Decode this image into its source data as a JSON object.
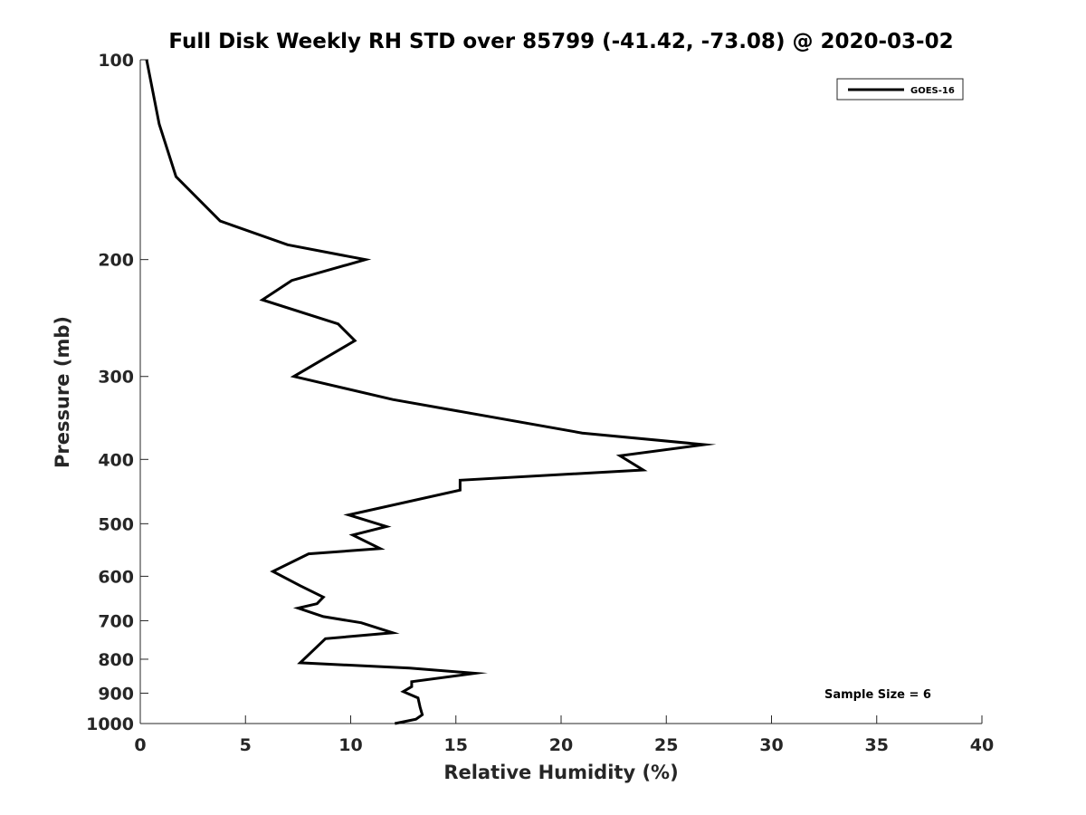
{
  "chart_data": {
    "type": "line",
    "title": "Full Disk Weekly RH STD over 85799 (-41.42, -73.08) @ 2020-03-02",
    "xlabel": "Relative Humidity (%)",
    "ylabel": "Pressure (mb)",
    "xlim": [
      0,
      40
    ],
    "ylim": [
      100,
      1000
    ],
    "yscale": "log",
    "y_reversed": true,
    "xticks": [
      0,
      5,
      10,
      15,
      20,
      25,
      30,
      35,
      40
    ],
    "xtick_labels": [
      "0",
      "5",
      "10",
      "15",
      "20",
      "25",
      "30",
      "35",
      "40"
    ],
    "yticks": [
      100,
      200,
      300,
      400,
      500,
      600,
      700,
      800,
      900,
      1000
    ],
    "ytick_labels": [
      "100",
      "200",
      "300",
      "400",
      "500",
      "600",
      "700",
      "800",
      "900",
      "1000"
    ],
    "grid": false,
    "legend": {
      "position": "top-right",
      "entries": [
        "GOES-16"
      ]
    },
    "annotation": "Sample Size = 6",
    "series": [
      {
        "name": "GOES-16",
        "color": "#000000",
        "points": [
          [
            0.3,
            100
          ],
          [
            0.9,
            125
          ],
          [
            1.7,
            150
          ],
          [
            3.8,
            175
          ],
          [
            7.0,
            190
          ],
          [
            10.7,
            200
          ],
          [
            7.2,
            215
          ],
          [
            5.8,
            230
          ],
          [
            9.4,
            250
          ],
          [
            10.2,
            265
          ],
          [
            7.3,
            300
          ],
          [
            12.0,
            325
          ],
          [
            21.0,
            365
          ],
          [
            26.8,
            380
          ],
          [
            22.8,
            395
          ],
          [
            23.9,
            415
          ],
          [
            15.2,
            430
          ],
          [
            15.2,
            445
          ],
          [
            9.9,
            485
          ],
          [
            11.7,
            505
          ],
          [
            10.1,
            520
          ],
          [
            11.4,
            545
          ],
          [
            8.0,
            555
          ],
          [
            6.3,
            590
          ],
          [
            7.6,
            620
          ],
          [
            8.7,
            645
          ],
          [
            8.4,
            660
          ],
          [
            7.5,
            670
          ],
          [
            8.7,
            690
          ],
          [
            10.5,
            705
          ],
          [
            12.0,
            730
          ],
          [
            8.8,
            745
          ],
          [
            7.6,
            810
          ],
          [
            12.8,
            825
          ],
          [
            15.9,
            840
          ],
          [
            12.9,
            865
          ],
          [
            12.9,
            880
          ],
          [
            12.5,
            895
          ],
          [
            13.2,
            915
          ],
          [
            13.3,
            945
          ],
          [
            13.4,
            970
          ],
          [
            13.1,
            985
          ],
          [
            12.1,
            1000
          ]
        ]
      }
    ]
  }
}
